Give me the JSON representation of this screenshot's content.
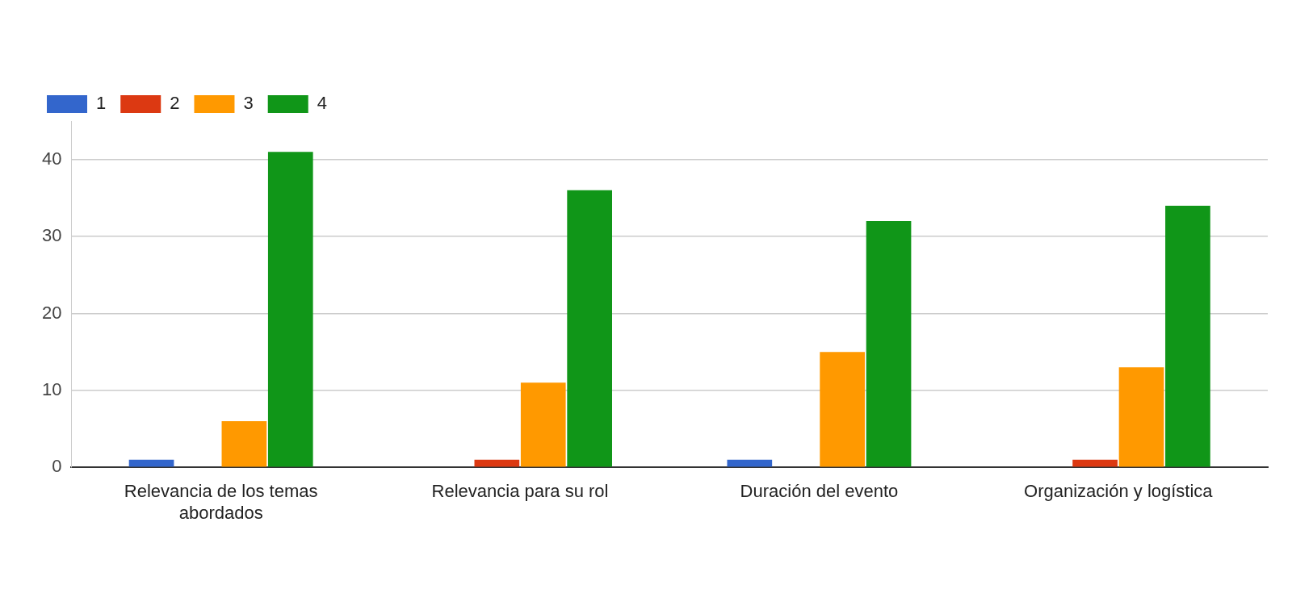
{
  "chart_data": {
    "type": "bar",
    "categories": [
      "Relevancia de los temas abordados",
      "Relevancia para su rol",
      "Duración del evento",
      "Organización y logística"
    ],
    "series": [
      {
        "name": "1",
        "color": "#3366cc",
        "values": [
          1,
          0,
          1,
          0
        ]
      },
      {
        "name": "2",
        "color": "#dc3912",
        "values": [
          0,
          1,
          0,
          1
        ]
      },
      {
        "name": "3",
        "color": "#ff9900",
        "values": [
          6,
          11,
          15,
          13
        ]
      },
      {
        "name": "4",
        "color": "#109618",
        "values": [
          41,
          36,
          32,
          34
        ]
      }
    ],
    "ylim": [
      0,
      45
    ],
    "yticks": [
      0,
      10,
      20,
      30,
      40
    ],
    "grid": true,
    "legend": "top-left"
  }
}
